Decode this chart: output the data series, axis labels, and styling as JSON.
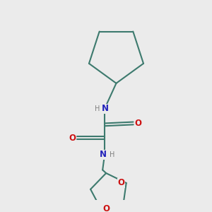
{
  "bg_color": "#ebebeb",
  "bond_color": "#3d7a6e",
  "N_color": "#2222bb",
  "O_color": "#cc1111",
  "H_color": "#808080",
  "bond_width": 1.5,
  "figsize": [
    3.0,
    3.0
  ],
  "dpi": 100,
  "xlim": [
    0,
    10
  ],
  "ylim": [
    0,
    12
  ]
}
